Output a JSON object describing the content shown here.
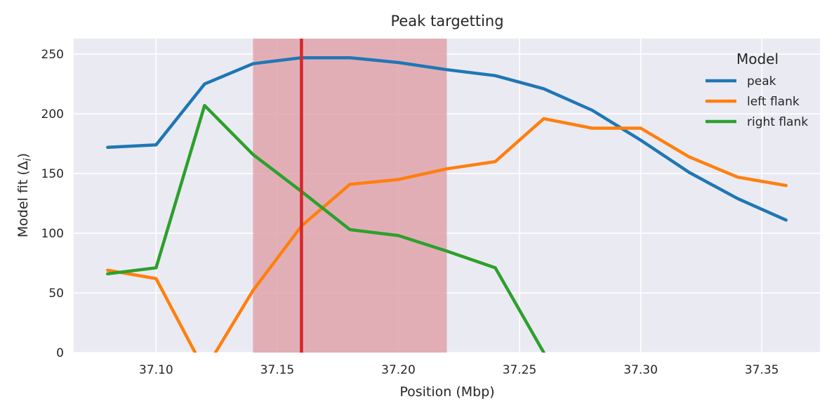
{
  "chart_data": {
    "type": "line",
    "title": "Peak targetting",
    "xlabel": "Position (Mbp)",
    "ylabel_main": "Model fit (Δ",
    "ylabel_sub": "i",
    "ylabel_close": ")",
    "xlim": [
      37.066,
      37.374
    ],
    "ylim": [
      0,
      263
    ],
    "xticks": [
      37.1,
      37.15,
      37.2,
      37.25,
      37.3,
      37.35
    ],
    "xtick_labels": [
      "37.10",
      "37.15",
      "37.20",
      "37.25",
      "37.30",
      "37.35"
    ],
    "yticks": [
      0,
      50,
      100,
      150,
      200,
      250
    ],
    "ytick_labels": [
      "0",
      "50",
      "100",
      "150",
      "200",
      "250"
    ],
    "grid": true,
    "highlight_band": [
      37.14,
      37.22
    ],
    "marker_line": 37.16,
    "legend": {
      "title": "Model",
      "placement": "top-right"
    },
    "series": [
      {
        "name": "peak",
        "color": "#1f77b4",
        "x": [
          37.08,
          37.1,
          37.12,
          37.14,
          37.16,
          37.18,
          37.2,
          37.22,
          37.24,
          37.26,
          37.28,
          37.3,
          37.32,
          37.34,
          37.36
        ],
        "y": [
          172,
          174,
          225,
          242,
          247,
          247,
          243,
          237,
          232,
          221,
          203,
          178,
          151,
          129,
          111
        ]
      },
      {
        "name": "left flank",
        "color": "#ff7f0e",
        "x": [
          37.08,
          37.1,
          37.12,
          37.14,
          37.16,
          37.18,
          37.2,
          37.22,
          37.24,
          37.26,
          37.28,
          37.3,
          37.32,
          37.34,
          37.36
        ],
        "y": [
          69,
          62,
          -15,
          52,
          106,
          141,
          145,
          154,
          160,
          196,
          188,
          188,
          164,
          147,
          140
        ]
      },
      {
        "name": "right flank",
        "color": "#2ca02c",
        "x": [
          37.08,
          37.1,
          37.12,
          37.14,
          37.16,
          37.18,
          37.2,
          37.22,
          37.24,
          37.26
        ],
        "y": [
          66,
          71,
          207,
          166,
          135,
          103,
          98,
          85,
          71,
          0
        ]
      }
    ]
  },
  "colors": {
    "plot_background": "#eaeaf2",
    "grid": "#ffffff",
    "band": "#e1a3ab",
    "marker_line": "#d62728"
  }
}
